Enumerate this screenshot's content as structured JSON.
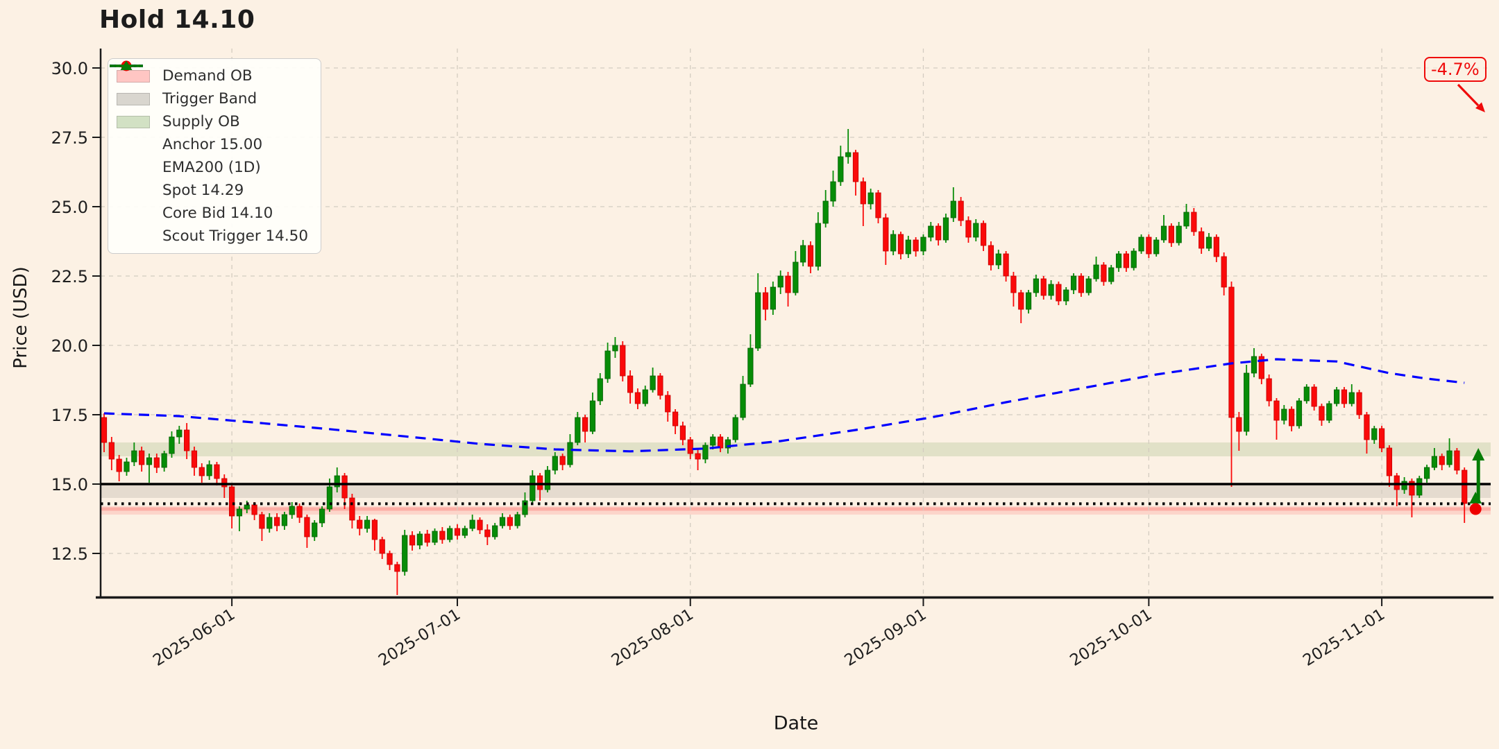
{
  "title": "Hold 14.10",
  "axes": {
    "x_label": "Date",
    "y_label": "Price (USD)"
  },
  "annotations": {
    "pct_change": "-4.7%",
    "pct_change_color": "#ef0a0a",
    "entry_arrow_color": "#067d06"
  },
  "legend": {
    "items": [
      {
        "label": "Demand OB",
        "type": "band",
        "color": "rgba(255,70,70,0.30)"
      },
      {
        "label": "Trigger Band",
        "type": "band",
        "color": "rgba(130,122,110,0.30)"
      },
      {
        "label": "Supply OB",
        "type": "band",
        "color": "rgba(95,150,60,0.28)"
      },
      {
        "label": "Anchor 15.00",
        "type": "line",
        "dash": "solid",
        "color": "#000000"
      },
      {
        "label": "EMA200 (1D)",
        "type": "line",
        "dash": "dashed",
        "color": "#0000ff"
      },
      {
        "label": "Spot 14.29",
        "type": "line",
        "dash": "dotted",
        "color": "#000000"
      },
      {
        "label": "Core Bid 14.10",
        "type": "marker-dot",
        "color": "#ef0000"
      },
      {
        "label": "Scout Trigger 14.50",
        "type": "marker-triangle",
        "color": "#067d06"
      }
    ]
  },
  "chart_data": {
    "type": "candlestick",
    "title": "Hold 14.10",
    "xlabel": "Date",
    "ylabel": "Price (USD)",
    "ylim": [
      10.95,
      31.1
    ],
    "y_ticks": [
      12.5,
      15.0,
      17.5,
      20.0,
      22.5,
      25.0,
      27.5,
      30.0
    ],
    "x_ticks": [
      "2025-06-01",
      "2025-07-01",
      "2025-08-01",
      "2025-09-01",
      "2025-10-01",
      "2025-11-01"
    ],
    "grid": true,
    "legend_position": "upper-left",
    "levels": {
      "anchor": 15.0,
      "spot": 14.29,
      "core_bid": 14.1,
      "scout_trigger": 14.5
    },
    "bands": {
      "demand_ob": [
        13.9,
        14.2
      ],
      "trigger_band": [
        14.5,
        15.0
      ],
      "supply_ob": [
        16.0,
        16.5
      ]
    },
    "colors": {
      "background": "#fcf1e4",
      "up": "#078c07",
      "up_edge": "#045f04",
      "down": "#fa0a0a",
      "down_edge": "#c30000",
      "ema": "#0000ff",
      "anchor": "#000000",
      "spot": "#000000",
      "supply_band": "rgba(95,150,60,0.17)",
      "trigger_band": "rgba(130,122,110,0.18)",
      "demand_band": "rgba(255,70,70,0.16)",
      "demand_core": "rgba(255,60,60,0.26)",
      "grid": "#d3ccc0",
      "core_bid_marker": "#ef0000",
      "scout_marker": "#067d06",
      "annotation": "#ef0a0a"
    },
    "start_date": "2025-05-15",
    "freq": "daily",
    "candles_format": [
      "open",
      "high",
      "low",
      "close"
    ],
    "candles": [
      [
        17.4,
        17.55,
        16.15,
        16.5
      ],
      [
        16.5,
        16.7,
        15.5,
        15.9
      ],
      [
        15.9,
        16.05,
        15.1,
        15.45
      ],
      [
        15.45,
        15.95,
        15.3,
        15.8
      ],
      [
        15.8,
        16.5,
        15.65,
        16.2
      ],
      [
        16.2,
        16.35,
        15.45,
        15.7
      ],
      [
        15.7,
        16.1,
        15.05,
        15.95
      ],
      [
        15.95,
        16.1,
        15.4,
        15.6
      ],
      [
        15.6,
        16.2,
        15.45,
        16.1
      ],
      [
        16.1,
        16.9,
        15.95,
        16.7
      ],
      [
        16.7,
        17.1,
        16.45,
        16.95
      ],
      [
        16.95,
        17.2,
        15.9,
        16.2
      ],
      [
        16.2,
        16.35,
        15.3,
        15.6
      ],
      [
        15.6,
        15.75,
        15.05,
        15.3
      ],
      [
        15.3,
        15.85,
        15.15,
        15.7
      ],
      [
        15.7,
        15.8,
        14.95,
        15.2
      ],
      [
        15.2,
        15.35,
        14.5,
        14.9
      ],
      [
        14.9,
        15.0,
        13.4,
        13.85
      ],
      [
        13.85,
        14.2,
        13.3,
        14.1
      ],
      [
        14.1,
        14.4,
        13.95,
        14.25
      ],
      [
        14.25,
        14.35,
        13.7,
        13.9
      ],
      [
        13.9,
        14.0,
        12.95,
        13.4
      ],
      [
        13.4,
        13.95,
        13.25,
        13.8
      ],
      [
        13.8,
        13.95,
        13.3,
        13.5
      ],
      [
        13.5,
        14.0,
        13.35,
        13.9
      ],
      [
        13.9,
        14.35,
        13.75,
        14.2
      ],
      [
        14.2,
        14.3,
        13.6,
        13.8
      ],
      [
        13.8,
        13.9,
        12.7,
        13.1
      ],
      [
        13.1,
        13.7,
        12.95,
        13.6
      ],
      [
        13.6,
        14.2,
        13.45,
        14.1
      ],
      [
        14.1,
        15.2,
        14.0,
        14.9
      ],
      [
        14.9,
        15.6,
        14.7,
        15.3
      ],
      [
        15.3,
        15.4,
        14.1,
        14.5
      ],
      [
        14.5,
        14.65,
        13.4,
        13.7
      ],
      [
        13.7,
        13.85,
        13.15,
        13.4
      ],
      [
        13.4,
        13.85,
        13.25,
        13.7
      ],
      [
        13.7,
        13.75,
        12.6,
        13.0
      ],
      [
        13.0,
        13.1,
        12.3,
        12.5
      ],
      [
        12.5,
        12.6,
        11.9,
        12.1
      ],
      [
        12.1,
        12.2,
        11.0,
        11.85
      ],
      [
        11.85,
        13.35,
        11.7,
        13.15
      ],
      [
        13.15,
        13.3,
        12.6,
        12.8
      ],
      [
        12.8,
        13.3,
        12.65,
        13.2
      ],
      [
        13.2,
        13.35,
        12.75,
        12.9
      ],
      [
        12.9,
        13.4,
        12.8,
        13.3
      ],
      [
        13.3,
        13.45,
        12.85,
        13.0
      ],
      [
        13.0,
        13.5,
        12.9,
        13.4
      ],
      [
        13.4,
        13.55,
        13.0,
        13.15
      ],
      [
        13.15,
        13.5,
        13.05,
        13.4
      ],
      [
        13.4,
        13.9,
        13.3,
        13.7
      ],
      [
        13.7,
        13.8,
        13.2,
        13.35
      ],
      [
        13.35,
        13.55,
        12.8,
        13.1
      ],
      [
        13.1,
        13.6,
        13.0,
        13.5
      ],
      [
        13.5,
        13.95,
        13.4,
        13.8
      ],
      [
        13.8,
        13.9,
        13.35,
        13.5
      ],
      [
        13.5,
        14.0,
        13.4,
        13.9
      ],
      [
        13.9,
        14.7,
        13.8,
        14.4
      ],
      [
        14.4,
        15.5,
        14.3,
        15.3
      ],
      [
        15.3,
        15.4,
        14.4,
        14.8
      ],
      [
        14.8,
        15.65,
        14.7,
        15.5
      ],
      [
        15.5,
        16.15,
        15.35,
        16.0
      ],
      [
        16.0,
        16.1,
        15.5,
        15.7
      ],
      [
        15.7,
        16.8,
        15.6,
        16.5
      ],
      [
        16.5,
        17.6,
        16.4,
        17.4
      ],
      [
        17.4,
        17.5,
        16.5,
        16.9
      ],
      [
        16.9,
        18.3,
        16.8,
        18.0
      ],
      [
        18.0,
        19.0,
        17.85,
        18.8
      ],
      [
        18.8,
        20.1,
        18.65,
        19.8
      ],
      [
        19.8,
        20.3,
        19.55,
        20.0
      ],
      [
        20.0,
        20.15,
        18.7,
        18.9
      ],
      [
        18.9,
        19.1,
        17.9,
        18.3
      ],
      [
        18.3,
        18.45,
        17.7,
        17.9
      ],
      [
        17.9,
        18.55,
        17.8,
        18.4
      ],
      [
        18.4,
        19.2,
        18.3,
        18.9
      ],
      [
        18.9,
        19.0,
        18.05,
        18.2
      ],
      [
        18.2,
        18.35,
        17.25,
        17.6
      ],
      [
        17.6,
        17.7,
        16.8,
        17.1
      ],
      [
        17.1,
        17.25,
        16.4,
        16.6
      ],
      [
        16.6,
        16.7,
        15.9,
        16.1
      ],
      [
        16.1,
        16.25,
        15.5,
        15.9
      ],
      [
        15.9,
        16.5,
        15.75,
        16.4
      ],
      [
        16.4,
        16.8,
        16.25,
        16.7
      ],
      [
        16.7,
        16.8,
        16.15,
        16.3
      ],
      [
        16.3,
        16.7,
        16.1,
        16.6
      ],
      [
        16.6,
        17.5,
        16.5,
        17.4
      ],
      [
        17.4,
        18.9,
        17.3,
        18.6
      ],
      [
        18.6,
        20.4,
        18.5,
        19.9
      ],
      [
        19.9,
        22.6,
        19.8,
        21.9
      ],
      [
        21.9,
        22.1,
        20.9,
        21.3
      ],
      [
        21.3,
        22.3,
        21.1,
        22.1
      ],
      [
        22.1,
        22.7,
        21.85,
        22.5
      ],
      [
        22.5,
        22.65,
        21.4,
        21.9
      ],
      [
        21.9,
        23.4,
        21.8,
        23.0
      ],
      [
        23.0,
        23.8,
        22.85,
        23.6
      ],
      [
        23.6,
        23.75,
        22.6,
        22.85
      ],
      [
        22.85,
        24.8,
        22.7,
        24.4
      ],
      [
        24.4,
        25.6,
        24.25,
        25.2
      ],
      [
        25.2,
        26.3,
        25.0,
        25.9
      ],
      [
        25.9,
        27.2,
        25.75,
        26.8
      ],
      [
        26.8,
        27.8,
        26.55,
        26.95
      ],
      [
        26.95,
        27.05,
        25.4,
        25.9
      ],
      [
        25.9,
        26.05,
        24.3,
        25.1
      ],
      [
        25.1,
        25.65,
        24.9,
        25.5
      ],
      [
        25.5,
        25.6,
        24.4,
        24.6
      ],
      [
        24.6,
        24.75,
        22.9,
        23.4
      ],
      [
        23.4,
        24.15,
        23.25,
        24.0
      ],
      [
        24.0,
        24.1,
        23.1,
        23.3
      ],
      [
        23.3,
        23.95,
        23.15,
        23.8
      ],
      [
        23.8,
        23.9,
        23.2,
        23.4
      ],
      [
        23.4,
        24.0,
        23.25,
        23.9
      ],
      [
        23.9,
        24.45,
        23.75,
        24.3
      ],
      [
        24.3,
        24.4,
        23.6,
        23.8
      ],
      [
        23.8,
        24.75,
        23.7,
        24.6
      ],
      [
        24.6,
        25.7,
        24.45,
        25.2
      ],
      [
        25.2,
        25.35,
        24.3,
        24.5
      ],
      [
        24.5,
        24.65,
        23.7,
        23.9
      ],
      [
        23.9,
        24.55,
        23.75,
        24.4
      ],
      [
        24.4,
        24.5,
        23.4,
        23.6
      ],
      [
        23.6,
        23.75,
        22.7,
        22.9
      ],
      [
        22.9,
        23.45,
        22.75,
        23.3
      ],
      [
        23.3,
        23.4,
        22.3,
        22.5
      ],
      [
        22.5,
        22.65,
        21.4,
        21.9
      ],
      [
        21.9,
        22.0,
        20.8,
        21.3
      ],
      [
        21.3,
        22.0,
        21.15,
        21.9
      ],
      [
        21.9,
        22.55,
        21.75,
        22.4
      ],
      [
        22.4,
        22.5,
        21.65,
        21.8
      ],
      [
        21.8,
        22.35,
        21.65,
        22.2
      ],
      [
        22.2,
        22.3,
        21.45,
        21.6
      ],
      [
        21.6,
        22.1,
        21.45,
        22.0
      ],
      [
        22.0,
        22.6,
        21.85,
        22.5
      ],
      [
        22.5,
        22.6,
        21.75,
        21.9
      ],
      [
        21.9,
        22.5,
        21.8,
        22.4
      ],
      [
        22.4,
        23.2,
        22.3,
        22.9
      ],
      [
        22.9,
        23.0,
        22.15,
        22.3
      ],
      [
        22.3,
        22.9,
        22.2,
        22.8
      ],
      [
        22.8,
        23.4,
        22.65,
        23.3
      ],
      [
        23.3,
        23.4,
        22.65,
        22.8
      ],
      [
        22.8,
        23.5,
        22.7,
        23.4
      ],
      [
        23.4,
        24.0,
        23.3,
        23.9
      ],
      [
        23.9,
        24.0,
        23.15,
        23.3
      ],
      [
        23.3,
        23.9,
        23.2,
        23.8
      ],
      [
        23.8,
        24.7,
        23.7,
        24.3
      ],
      [
        24.3,
        24.4,
        23.55,
        23.7
      ],
      [
        23.7,
        24.45,
        23.6,
        24.3
      ],
      [
        24.3,
        25.1,
        24.2,
        24.8
      ],
      [
        24.8,
        24.95,
        23.95,
        24.1
      ],
      [
        24.1,
        24.25,
        23.3,
        23.5
      ],
      [
        23.5,
        24.05,
        23.4,
        23.9
      ],
      [
        23.9,
        24.0,
        23.0,
        23.2
      ],
      [
        23.2,
        23.35,
        21.8,
        22.1
      ],
      [
        22.1,
        22.3,
        14.9,
        17.4
      ],
      [
        17.4,
        17.6,
        16.2,
        16.9
      ],
      [
        16.9,
        19.3,
        16.75,
        19.0
      ],
      [
        19.0,
        19.9,
        18.85,
        19.6
      ],
      [
        19.6,
        19.7,
        18.6,
        18.8
      ],
      [
        18.8,
        18.95,
        17.8,
        18.0
      ],
      [
        18.0,
        18.1,
        16.6,
        17.3
      ],
      [
        17.3,
        17.85,
        17.15,
        17.7
      ],
      [
        17.7,
        17.8,
        16.9,
        17.1
      ],
      [
        17.1,
        18.1,
        17.0,
        18.0
      ],
      [
        18.0,
        18.6,
        17.9,
        18.5
      ],
      [
        18.5,
        18.6,
        17.65,
        17.8
      ],
      [
        17.8,
        17.9,
        17.1,
        17.3
      ],
      [
        17.3,
        18.0,
        17.2,
        17.9
      ],
      [
        17.9,
        18.5,
        17.8,
        18.4
      ],
      [
        18.4,
        18.5,
        17.75,
        17.9
      ],
      [
        17.9,
        18.6,
        17.8,
        18.3
      ],
      [
        18.3,
        18.4,
        17.35,
        17.5
      ],
      [
        17.5,
        17.6,
        16.1,
        16.6
      ],
      [
        16.6,
        17.1,
        16.45,
        17.0
      ],
      [
        17.0,
        17.1,
        16.15,
        16.3
      ],
      [
        16.3,
        16.4,
        14.9,
        15.3
      ],
      [
        15.3,
        15.4,
        14.2,
        14.8
      ],
      [
        14.8,
        15.25,
        14.65,
        15.1
      ],
      [
        15.1,
        15.2,
        13.8,
        14.6
      ],
      [
        14.6,
        15.3,
        14.5,
        15.2
      ],
      [
        15.2,
        15.7,
        15.05,
        15.6
      ],
      [
        15.6,
        16.3,
        15.5,
        16.0
      ],
      [
        16.0,
        16.1,
        15.5,
        15.7
      ],
      [
        15.7,
        16.65,
        15.6,
        16.2
      ],
      [
        16.2,
        16.3,
        15.35,
        15.5
      ],
      [
        15.5,
        15.6,
        13.6,
        14.3
      ]
    ],
    "ema200": [
      [
        "2025-05-15",
        17.55
      ],
      [
        "2025-05-25",
        17.45
      ],
      [
        "2025-06-04",
        17.22
      ],
      [
        "2025-06-14",
        16.98
      ],
      [
        "2025-06-24",
        16.72
      ],
      [
        "2025-07-04",
        16.45
      ],
      [
        "2025-07-14",
        16.25
      ],
      [
        "2025-07-24",
        16.18
      ],
      [
        "2025-08-03",
        16.28
      ],
      [
        "2025-08-13",
        16.55
      ],
      [
        "2025-08-23",
        16.95
      ],
      [
        "2025-09-02",
        17.4
      ],
      [
        "2025-09-12",
        17.95
      ],
      [
        "2025-09-22",
        18.45
      ],
      [
        "2025-10-02",
        18.95
      ],
      [
        "2025-10-12",
        19.35
      ],
      [
        "2025-10-18",
        19.5
      ],
      [
        "2025-10-26",
        19.42
      ],
      [
        "2025-11-02",
        19.0
      ],
      [
        "2025-11-07",
        18.8
      ],
      [
        "2025-11-12",
        18.65
      ]
    ]
  }
}
